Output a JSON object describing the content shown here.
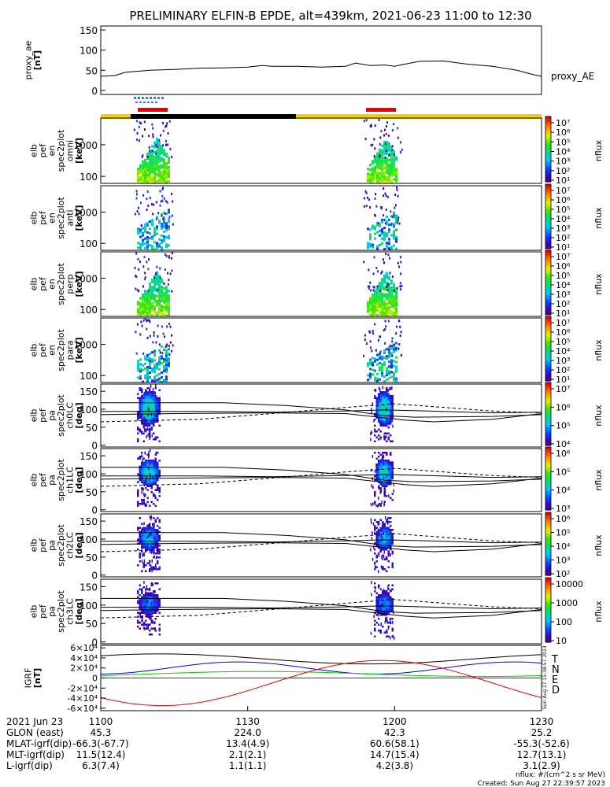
{
  "title": "PRELIMINARY ELFIN-B EPDE, alt=439km, 2021-06-23 11:00 to 12:30",
  "chart_data": {
    "type": "heatmap",
    "x_range_minutes": [
      0,
      90
    ],
    "panels": [
      {
        "id": "ae",
        "kind": "line",
        "ylabel_lines": [
          "proxy_ae",
          "[nT]"
        ],
        "yticks": [
          0,
          50,
          100,
          150
        ],
        "ylim": [
          -10,
          160
        ],
        "legend": "proxy_AE",
        "x": [
          0,
          3,
          5,
          10,
          15,
          20,
          25,
          30,
          33,
          35,
          40,
          45,
          50,
          52,
          55,
          58,
          60,
          62,
          65,
          70,
          75,
          80,
          85,
          88,
          90
        ],
        "y": [
          35,
          37,
          45,
          50,
          52,
          55,
          56,
          58,
          62,
          60,
          60,
          58,
          60,
          68,
          62,
          63,
          60,
          65,
          72,
          73,
          65,
          60,
          50,
          40,
          35
        ]
      },
      {
        "id": "s1",
        "kind": "energy",
        "ylabel_lines": [
          "elb",
          "pef",
          "en",
          "spec2plot",
          "omni",
          "[keV]"
        ],
        "yticks": [
          100,
          1000
        ],
        "cb_ticks": [
          "10⁷",
          "10⁶",
          "10⁵",
          "10⁴",
          "10³",
          "10²",
          "10¹"
        ],
        "cb_label": "nflux",
        "cb_log": [
          1,
          7
        ]
      },
      {
        "id": "s2",
        "kind": "energy",
        "ylabel_lines": [
          "elb",
          "pef",
          "en",
          "spec2plot",
          "anti",
          "[keV]"
        ],
        "yticks": [
          100,
          1000
        ],
        "cb_ticks": [
          "10⁷",
          "10⁶",
          "10⁵",
          "10⁴",
          "10³",
          "10²",
          "10¹"
        ],
        "cb_label": "nflux",
        "cb_log": [
          1,
          7
        ]
      },
      {
        "id": "s3",
        "kind": "energy",
        "ylabel_lines": [
          "elb",
          "pef",
          "en",
          "spec2plot",
          "perp",
          "[keV]"
        ],
        "yticks": [
          100,
          1000
        ],
        "cb_ticks": [
          "10⁷",
          "10⁶",
          "10⁵",
          "10⁴",
          "10³",
          "10²",
          "10¹"
        ],
        "cb_label": "nflux",
        "cb_log": [
          1,
          7
        ]
      },
      {
        "id": "s4",
        "kind": "energy",
        "ylabel_lines": [
          "elb",
          "pef",
          "en",
          "spec2plot",
          "para",
          "[keV]"
        ],
        "yticks": [
          100,
          1000
        ],
        "cb_ticks": [
          "10⁷",
          "10⁶",
          "10⁵",
          "10⁴",
          "10³",
          "10²",
          "10¹"
        ],
        "cb_label": "nflux",
        "cb_log": [
          1,
          7
        ]
      },
      {
        "id": "p0",
        "kind": "pitch",
        "ylabel_lines": [
          "elb",
          "pef",
          "pa",
          "spec2plot",
          "ch0LC",
          "[deg]"
        ],
        "yticks": [
          0,
          50,
          100,
          150
        ],
        "cb_ticks": [
          "10⁷",
          "10⁶",
          "10⁵",
          "10⁴"
        ],
        "cb_label": "nflux",
        "cb_log": [
          3.5,
          7
        ]
      },
      {
        "id": "p1",
        "kind": "pitch",
        "ylabel_lines": [
          "elb",
          "pef",
          "pa",
          "spec2plot",
          "ch1LC",
          "[deg]"
        ],
        "yticks": [
          0,
          50,
          100,
          150
        ],
        "cb_ticks": [
          "10⁶",
          "10⁵",
          "10⁴",
          "10³"
        ],
        "cb_label": "nflux",
        "cb_log": [
          3,
          6.5
        ]
      },
      {
        "id": "p2",
        "kind": "pitch",
        "ylabel_lines": [
          "elb",
          "pef",
          "pa",
          "spec2plot",
          "ch2LC",
          "[deg]"
        ],
        "yticks": [
          0,
          50,
          100,
          150
        ],
        "cb_ticks": [
          "10⁶",
          "10⁵",
          "10⁴",
          "10³",
          "10²"
        ],
        "cb_label": "nflux",
        "cb_log": [
          2,
          6.5
        ]
      },
      {
        "id": "p3",
        "kind": "pitch",
        "ylabel_lines": [
          "elb",
          "pef",
          "pa",
          "spec2plot",
          "ch3LC",
          "[deg]"
        ],
        "yticks": [
          0,
          50,
          100,
          150
        ],
        "cb_ticks": [
          "10000",
          "1000",
          "100",
          "10"
        ],
        "cb_label": "nflux",
        "cb_log": [
          1,
          4.3
        ]
      },
      {
        "id": "igrf",
        "kind": "igrf",
        "ylabel_lines": [
          "IGRF",
          "[nT]"
        ],
        "ytick_labels": [
          "6×10⁴",
          "4×10⁴",
          "2×10⁴",
          "0",
          "-2×10⁴",
          "-4×10⁴",
          "-6×10⁴"
        ],
        "ytick_values": [
          60000,
          40000,
          20000,
          0,
          -20000,
          -40000,
          -60000
        ],
        "ylim": [
          -65000,
          65000
        ],
        "series": [
          {
            "name": "T",
            "color": "#000000"
          },
          {
            "name": "N",
            "color": "#0000ee"
          },
          {
            "name": "E",
            "color": "#00cc00"
          },
          {
            "name": "D",
            "color": "#ee0000"
          }
        ]
      }
    ],
    "footer": {
      "x_labels": [
        "1100",
        "1130",
        "1200",
        "1230"
      ],
      "x_label_minutes": [
        0,
        30,
        60,
        90
      ],
      "rows": [
        {
          "label": "2021 Jun 23",
          "values": [
            "1100",
            "1130",
            "1200",
            "1230"
          ]
        },
        {
          "label": "GLON (east)",
          "values": [
            "45.3",
            "224.0",
            "42.3",
            "25.2"
          ]
        },
        {
          "label": "MLAT-igrf(dip)",
          "values": [
            "-66.3(-67.7)",
            "13.4(4.9)",
            "60.6(58.1)",
            "-55.3(-52.6)"
          ]
        },
        {
          "label": "MLT-igrf(dip)",
          "values": [
            "11.5(12.4)",
            "2.1(2.1)",
            "14.7(15.4)",
            "12.7(13.1)"
          ]
        },
        {
          "label": "L-igrf(dip)",
          "values": [
            "6.3(7.4)",
            "1.1(1.1)",
            "4.2(3.8)",
            "3.1(2.9)"
          ]
        }
      ]
    },
    "stamp": "Sun Aug 27 15:38:57 2023",
    "nflux_unit": "nflux: #/(cm^2 s sr MeV)",
    "created": "Created: Sun Aug 27 22:39:57 2023"
  }
}
